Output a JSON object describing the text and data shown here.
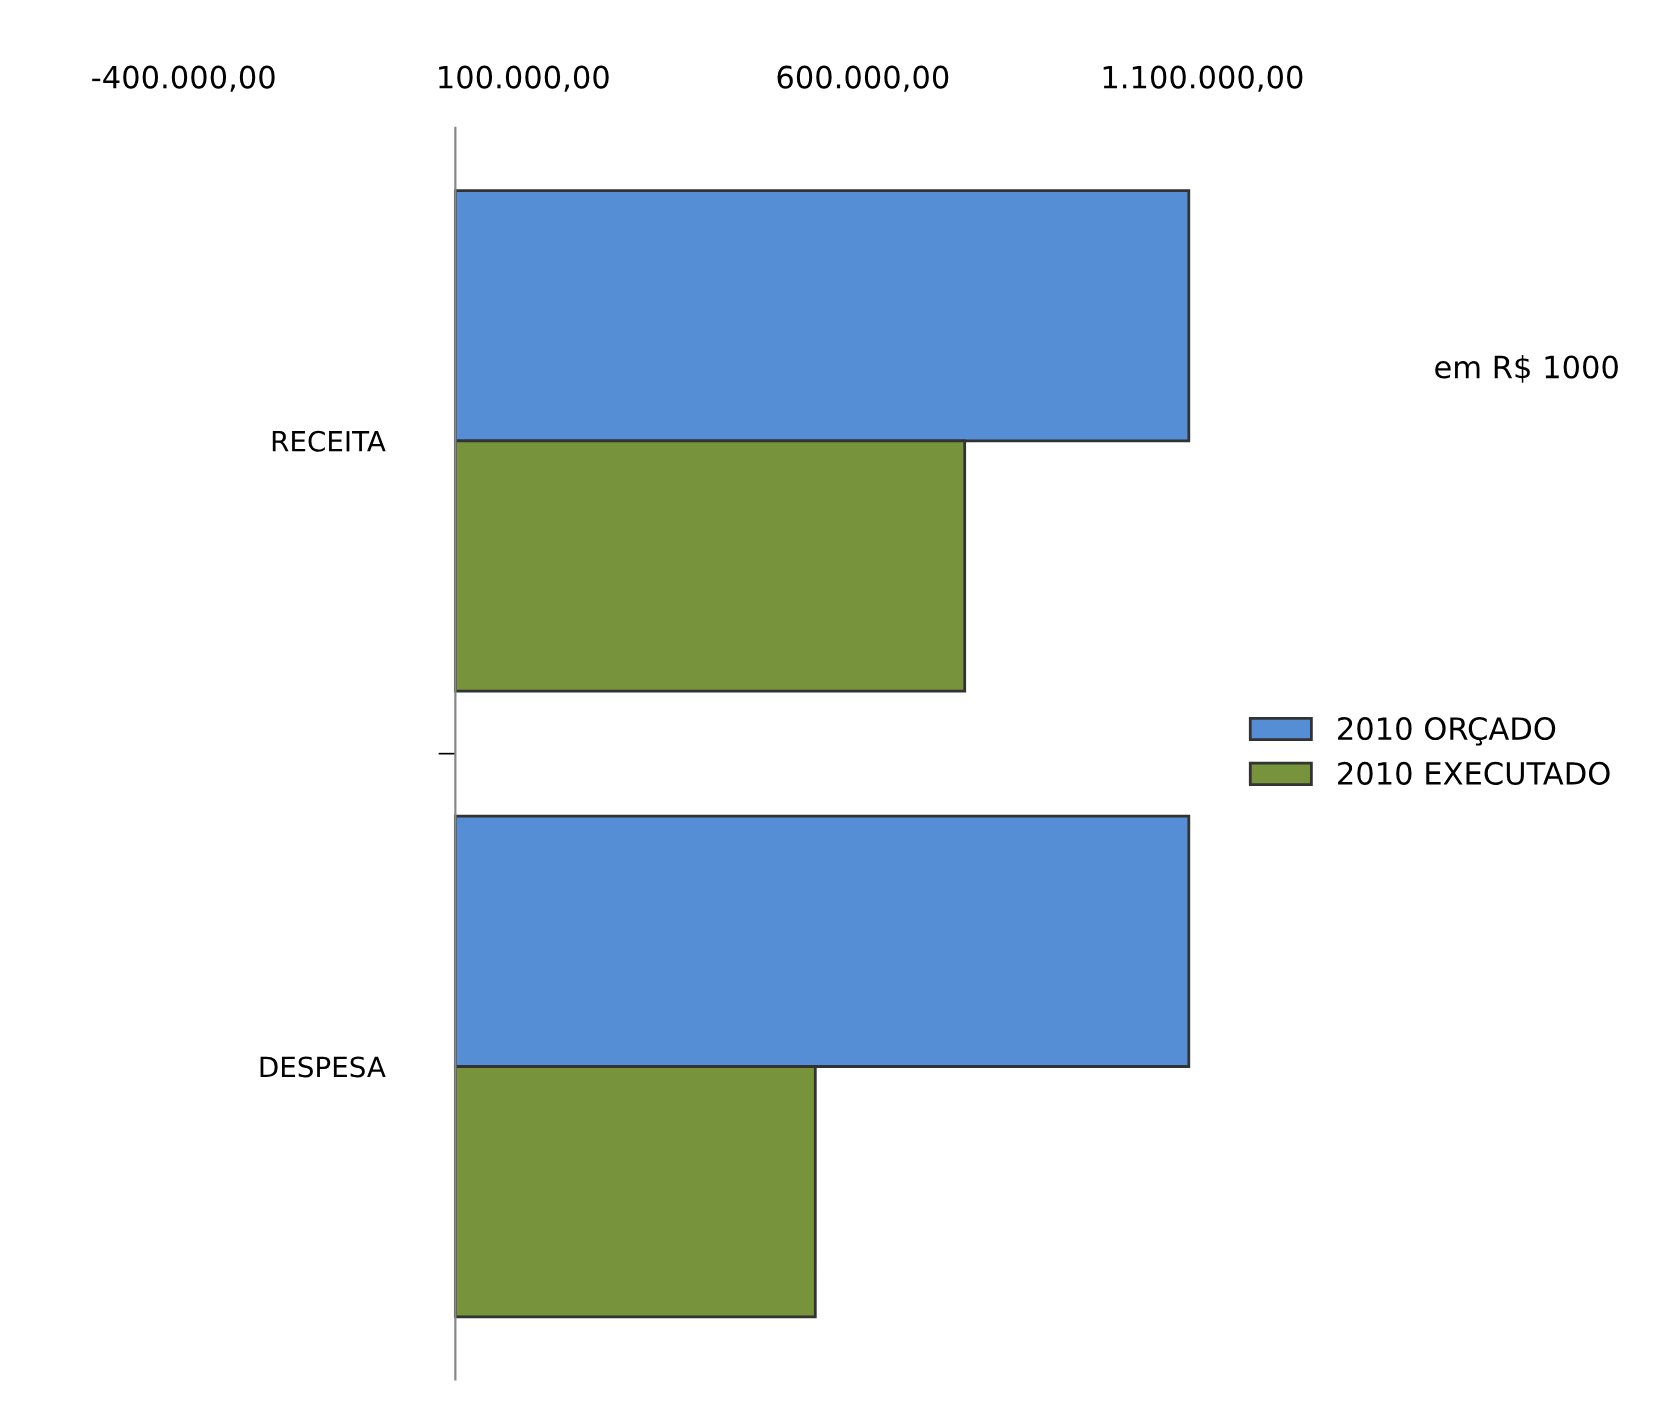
{
  "chart_data": {
    "type": "bar",
    "orientation": "horizontal",
    "categories": [
      "RECEITA",
      "DESPESA"
    ],
    "series": [
      {
        "name": "2010 ORÇADO",
        "color": "#558ed5",
        "values": [
          1080000,
          1080000
        ]
      },
      {
        "name": "2010 EXECUTADO",
        "color": "#77933c",
        "values": [
          750000,
          530000
        ]
      }
    ],
    "xlim": [
      -400000,
      1100000
    ],
    "xticks": [
      {
        "value": -400000,
        "label": "-400.000,00"
      },
      {
        "value": 100000,
        "label": "100.000,00"
      },
      {
        "value": 600000,
        "label": "600.000,00"
      },
      {
        "value": 1100000,
        "label": "1.100.000,00"
      }
    ],
    "annotations": [
      "em R$ 1000"
    ],
    "legend": "right",
    "grid": false
  }
}
